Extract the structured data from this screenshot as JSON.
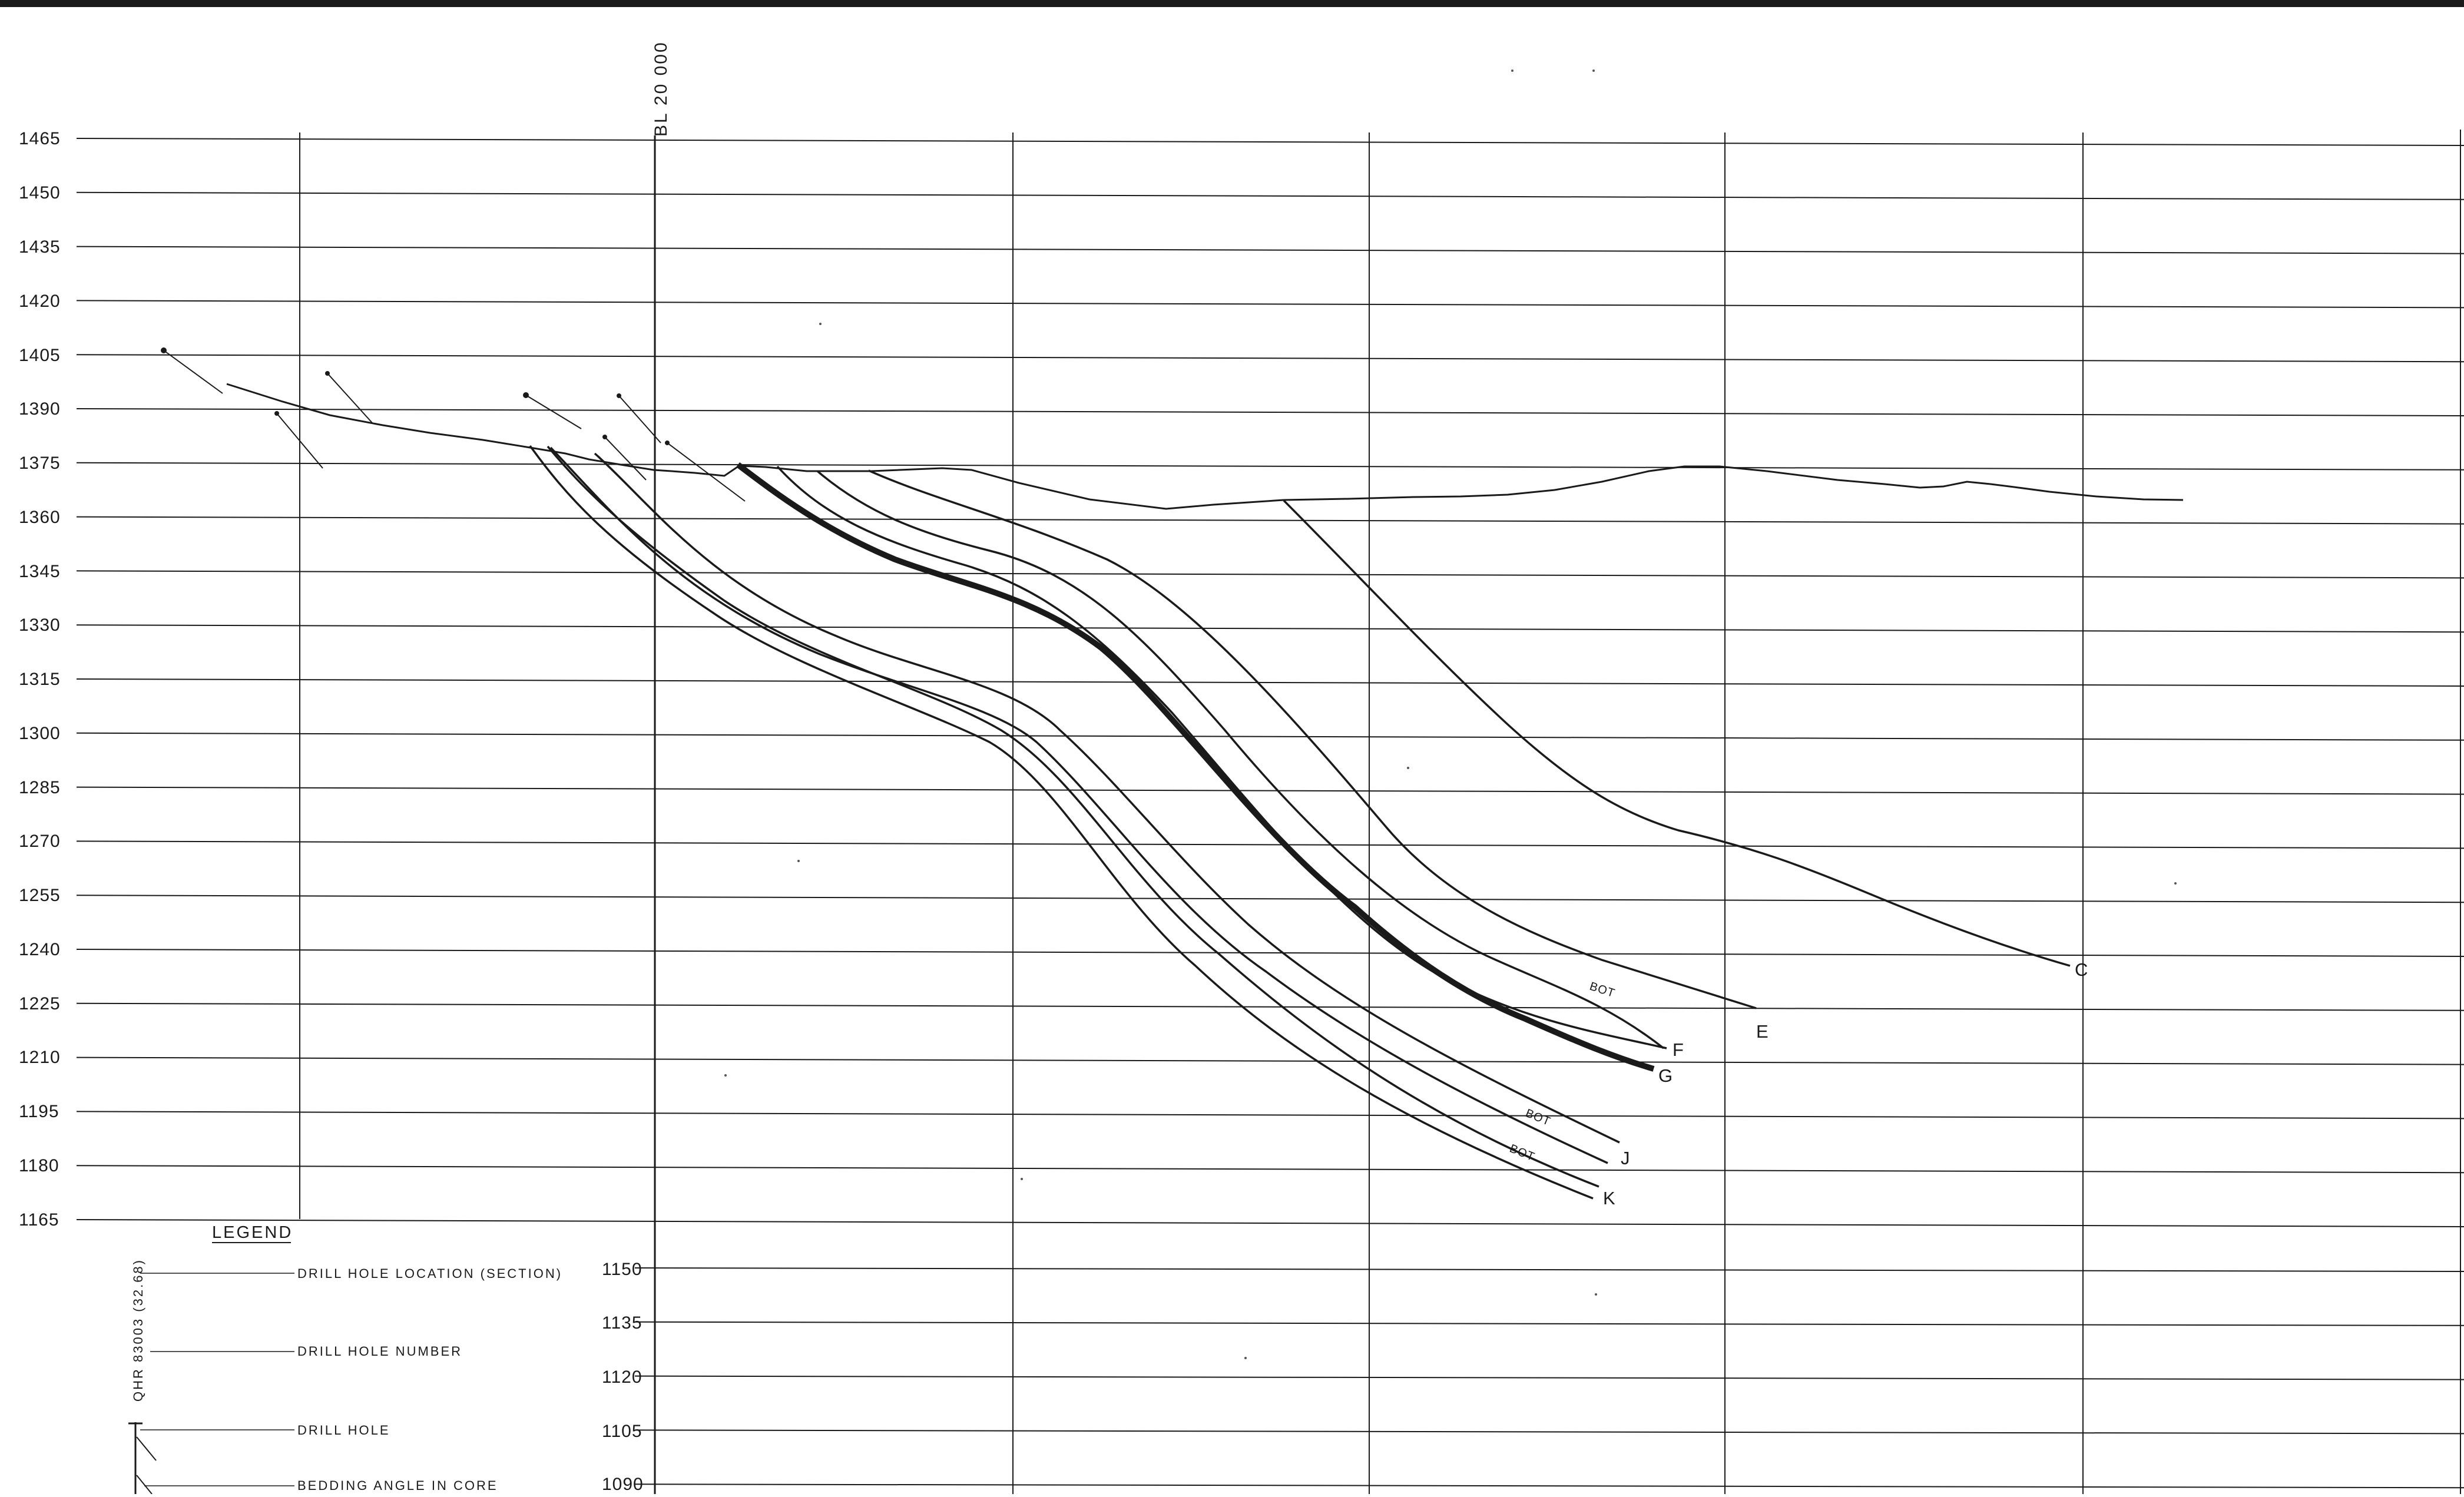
{
  "section": {
    "baseline_label": "BL 20 000",
    "elevations_upper": [
      "1465",
      "1450",
      "1435",
      "1420",
      "1405",
      "1390",
      "1375",
      "1360",
      "1345",
      "1330",
      "1315",
      "1300",
      "1285",
      "1270",
      "1255",
      "1240",
      "1225",
      "1210",
      "1195",
      "1180",
      "1165"
    ],
    "elevations_lower": [
      "1150",
      "1135",
      "1120",
      "1105",
      "1090"
    ]
  },
  "seams": [
    {
      "id": "E",
      "label": "E",
      "bot_label": "BOT"
    },
    {
      "id": "F",
      "label": "F"
    },
    {
      "id": "G",
      "label": "G"
    },
    {
      "id": "J",
      "label": "J",
      "bot_label": "BOT"
    },
    {
      "id": "K",
      "label": "K",
      "bot_label": "BOT"
    },
    {
      "id": "C",
      "label": "C"
    }
  ],
  "legend": {
    "title": "LEGEND",
    "sample_hole_id": "QHR 83003 (32.68)",
    "items": [
      {
        "label": "DRILL HOLE LOCATION (SECTION)"
      },
      {
        "label": "DRILL HOLE NUMBER"
      },
      {
        "label": "DRILL HOLE"
      },
      {
        "label": "BEDDING ANGLE IN CORE"
      }
    ]
  },
  "colors": {
    "ink": "#1a1a1a",
    "paper": "#ffffff"
  }
}
